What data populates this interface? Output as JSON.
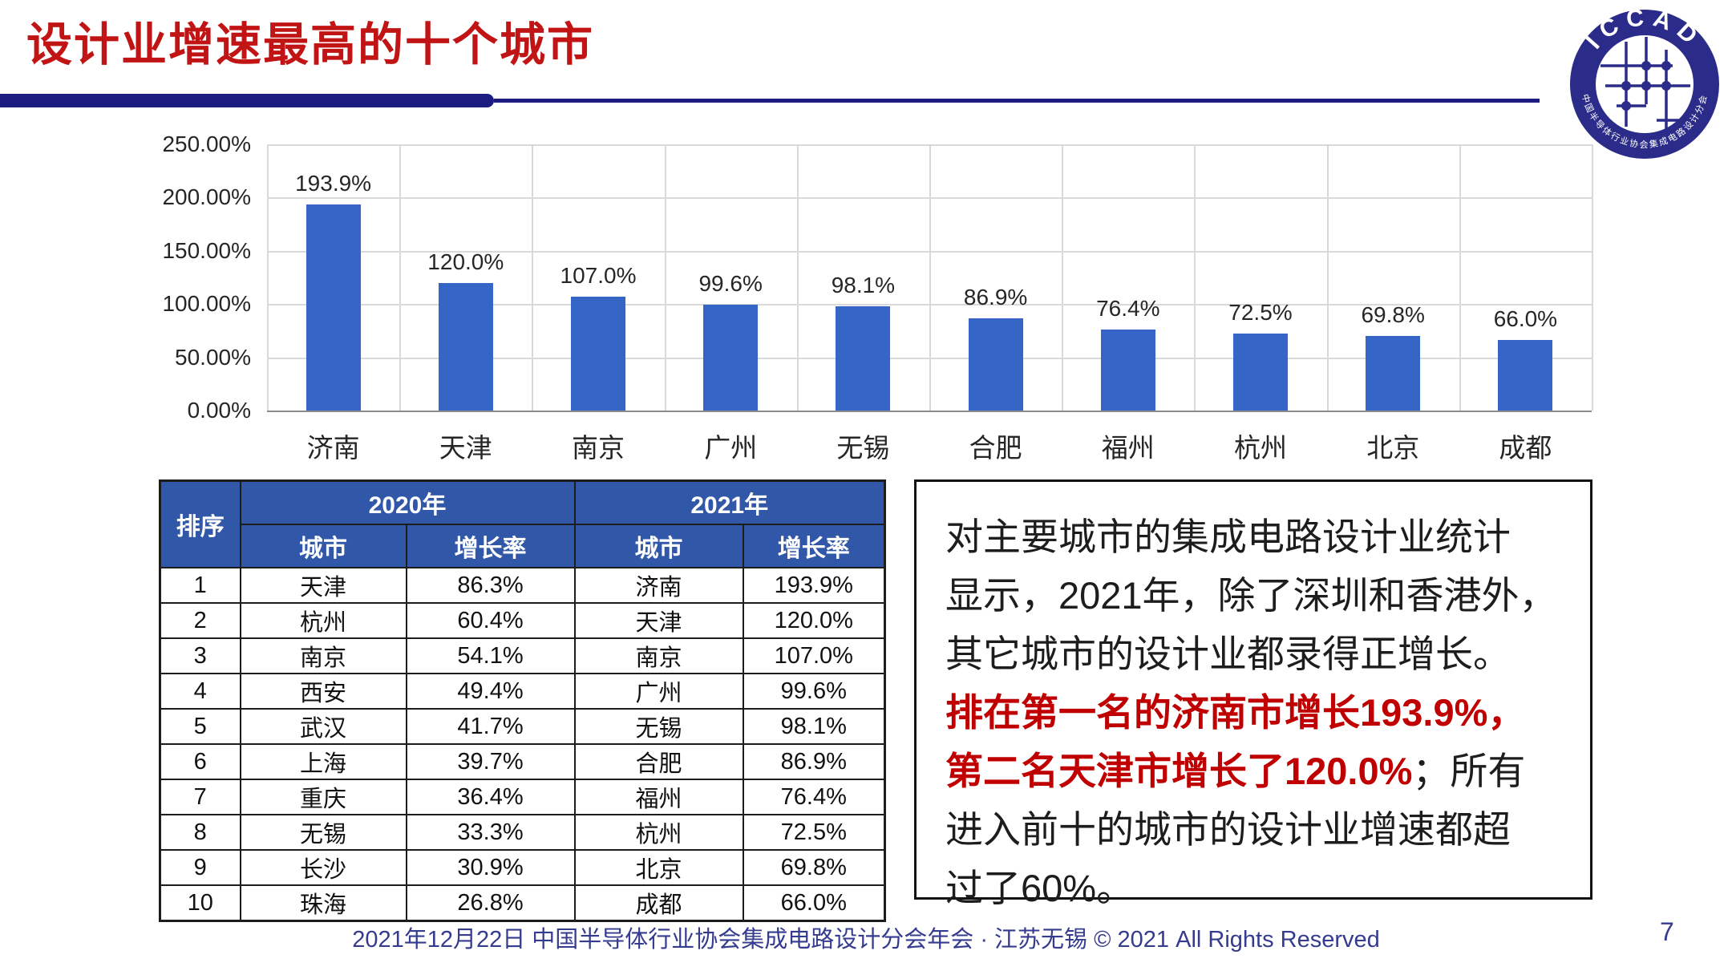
{
  "title": "设计业增速最高的十个城市",
  "logo": {
    "top_text": "ICCAD",
    "bottom_text": "中国半导体行业协会集成电路设计分会"
  },
  "colors": {
    "bar": "#3566C7",
    "titleRed": "#C11414",
    "navy": "#1B1B80",
    "headerBg": "#3157A8",
    "footerBlue": "#353B8F",
    "red": "#C00000"
  },
  "chart_data": {
    "type": "bar",
    "categories": [
      "济南",
      "天津",
      "南京",
      "广州",
      "无锡",
      "合肥",
      "福州",
      "杭州",
      "北京",
      "成都"
    ],
    "values": [
      193.9,
      120.0,
      107.0,
      99.6,
      98.1,
      86.9,
      76.4,
      72.5,
      69.8,
      66.0
    ],
    "labels": [
      "193.9%",
      "120.0%",
      "107.0%",
      "99.6%",
      "98.1%",
      "86.9%",
      "76.4%",
      "72.5%",
      "69.8%",
      "66.0%"
    ],
    "y_ticks": [
      "250.00%",
      "200.00%",
      "150.00%",
      "100.00%",
      "50.00%",
      "0.00%"
    ],
    "ylim": [
      0,
      250
    ],
    "title": "",
    "xlabel": "",
    "ylabel": "",
    "grid": true,
    "legend": "none"
  },
  "table": {
    "header": {
      "rank": "排序",
      "year2020": "2020年",
      "year2021": "2021年",
      "city": "城市",
      "rate": "增长率"
    },
    "rows": [
      {
        "rank": "1",
        "city2020": "天津",
        "rate2020": "86.3%",
        "city2021": "济南",
        "rate2021": "193.9%"
      },
      {
        "rank": "2",
        "city2020": "杭州",
        "rate2020": "60.4%",
        "city2021": "天津",
        "rate2021": "120.0%"
      },
      {
        "rank": "3",
        "city2020": "南京",
        "rate2020": "54.1%",
        "city2021": "南京",
        "rate2021": "107.0%"
      },
      {
        "rank": "4",
        "city2020": "西安",
        "rate2020": "49.4%",
        "city2021": "广州",
        "rate2021": "99.6%"
      },
      {
        "rank": "5",
        "city2020": "武汉",
        "rate2020": "41.7%",
        "city2021": "无锡",
        "rate2021": "98.1%"
      },
      {
        "rank": "6",
        "city2020": "上海",
        "rate2020": "39.7%",
        "city2021": "合肥",
        "rate2021": "86.9%"
      },
      {
        "rank": "7",
        "city2020": "重庆",
        "rate2020": "36.4%",
        "city2021": "福州",
        "rate2021": "76.4%"
      },
      {
        "rank": "8",
        "city2020": "无锡",
        "rate2020": "33.3%",
        "city2021": "杭州",
        "rate2021": "72.5%"
      },
      {
        "rank": "9",
        "city2020": "长沙",
        "rate2020": "30.9%",
        "city2021": "北京",
        "rate2021": "69.8%"
      },
      {
        "rank": "10",
        "city2020": "珠海",
        "rate2020": "26.8%",
        "city2021": "成都",
        "rate2021": "66.0%"
      }
    ]
  },
  "textbox": {
    "lines": [
      [
        {
          "t": "对主要城市的集成电路设计业统计",
          "red": false
        }
      ],
      [
        {
          "t": "显示，2021年，除了深圳和香港外，",
          "red": false
        }
      ],
      [
        {
          "t": "其它城市的设计业都录得正增长。",
          "red": false
        }
      ],
      [
        {
          "t": "排在第一名的济南市增长193.9%，",
          "red": true
        }
      ],
      [
        {
          "t": "第二名天津市增长了120.0%",
          "red": true
        },
        {
          "t": "；所有",
          "red": false
        }
      ],
      [
        {
          "t": "进入前十的城市的设计业增速都超",
          "red": false
        }
      ],
      [
        {
          "t": "过了60%。",
          "red": false
        }
      ]
    ]
  },
  "footer": {
    "text": "2021年12月22日 中国半导体行业协会集成电路设计分会年会 · 江苏无锡 © 2021 All Rights Reserved",
    "page": "7"
  }
}
